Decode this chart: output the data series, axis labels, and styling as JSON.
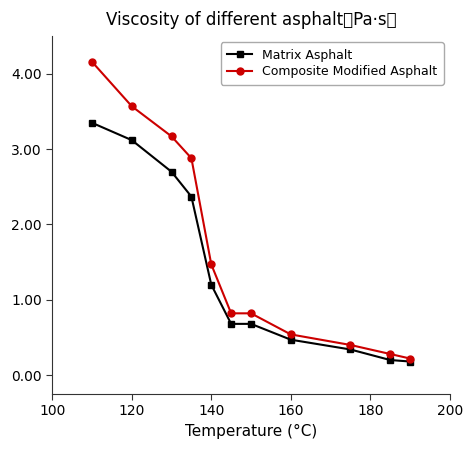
{
  "title": "Viscosity of different asphalt（Pa·s）",
  "xlabel": "Temperature (°C)",
  "matrix_x": [
    110,
    120,
    130,
    135,
    140,
    145,
    150,
    160,
    175,
    185,
    190
  ],
  "matrix_y": [
    3.35,
    3.12,
    2.7,
    2.37,
    1.2,
    0.68,
    0.68,
    0.47,
    0.34,
    0.2,
    0.18
  ],
  "composite_x": [
    110,
    120,
    130,
    135,
    140,
    145,
    150,
    160,
    175,
    185,
    190
  ],
  "composite_y": [
    4.16,
    3.57,
    3.17,
    2.88,
    1.47,
    0.82,
    0.82,
    0.54,
    0.4,
    0.28,
    0.22
  ],
  "matrix_color": "#000000",
  "composite_color": "#cc0000",
  "xlim": [
    100,
    200
  ],
  "ylim": [
    -0.25,
    4.5
  ],
  "yticks": [
    0.0,
    1.0,
    2.0,
    3.0,
    4.0
  ],
  "xticks": [
    100,
    120,
    140,
    160,
    180,
    200
  ],
  "legend_matrix": "Matrix Asphalt",
  "legend_composite": "Composite Modified Asphalt",
  "title_fontsize": 12,
  "label_fontsize": 11,
  "tick_fontsize": 10,
  "legend_fontsize": 9,
  "linewidth": 1.5,
  "markersize": 5
}
